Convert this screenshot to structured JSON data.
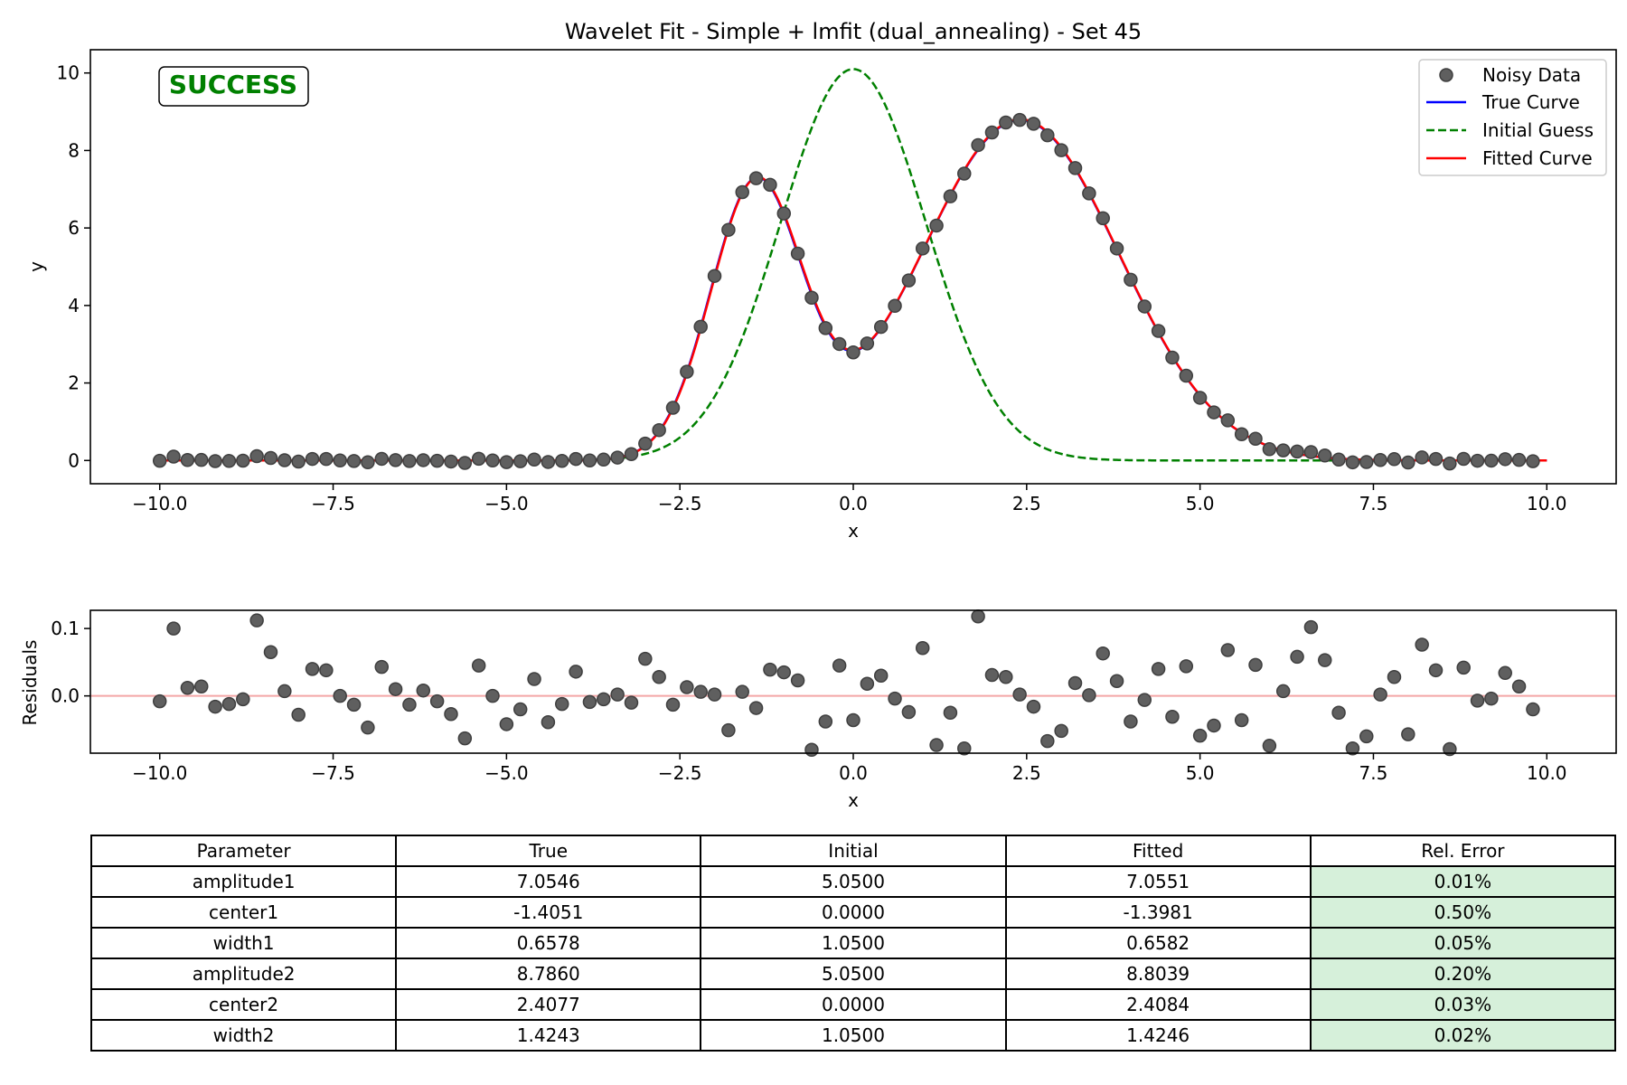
{
  "chart_data": [
    {
      "type": "line",
      "title": "Wavelet Fit - Simple + lmfit (dual_annealing) - Set 45",
      "xlabel": "x",
      "ylabel": "y",
      "xlim": [
        -11,
        11
      ],
      "ylim": [
        -0.6,
        10.6
      ],
      "xticks": [
        -10,
        -7.5,
        -5,
        -2.5,
        0,
        2.5,
        5,
        7.5,
        10
      ],
      "xtick_labels": [
        "−10.0",
        "−7.5",
        "−5.0",
        "−2.5",
        "0.0",
        "2.5",
        "5.0",
        "7.5",
        "10.0"
      ],
      "yticks": [
        0,
        2,
        4,
        6,
        8,
        10
      ],
      "ytick_labels": [
        "0",
        "2",
        "4",
        "6",
        "8",
        "10"
      ],
      "grid": false,
      "legend_placement": "top-right",
      "annotation": {
        "text": "SUCCESS",
        "color": "#008000"
      },
      "series": [
        {
          "name": "Noisy Data",
          "kind": "scatter",
          "color": "#5f5f5f"
        },
        {
          "name": "True Curve",
          "kind": "line",
          "color": "#0000ff",
          "model": {
            "amplitude1": 7.0546,
            "center1": -1.4051,
            "width1": 0.6578,
            "amplitude2": 8.786,
            "center2": 2.4077,
            "width2": 1.4243
          }
        },
        {
          "name": "Initial Guess",
          "kind": "dashed-line",
          "color": "#008000",
          "model": {
            "amplitude1": 5.05,
            "center1": 0.0,
            "width1": 1.05,
            "amplitude2": 5.05,
            "center2": 0.0,
            "width2": 1.05
          }
        },
        {
          "name": "Fitted Curve",
          "kind": "line",
          "color": "#ff0000",
          "model": {
            "amplitude1": 7.0551,
            "center1": -1.3981,
            "width1": 0.6582,
            "amplitude2": 8.8039,
            "center2": 2.4084,
            "width2": 1.4246
          }
        }
      ]
    },
    {
      "type": "scatter",
      "xlabel": "x",
      "ylabel": "Residuals",
      "xlim": [
        -11,
        11
      ],
      "ylim": [
        -0.085,
        0.127
      ],
      "xticks": [
        -10,
        -7.5,
        -5,
        -2.5,
        0,
        2.5,
        5,
        7.5,
        10
      ],
      "xtick_labels": [
        "−10.0",
        "−7.5",
        "−5.0",
        "−2.5",
        "0.0",
        "2.5",
        "5.0",
        "7.5",
        "10.0"
      ],
      "yticks": [
        0.0,
        0.1
      ],
      "ytick_labels": [
        "0.0",
        "0.1"
      ],
      "zero_line_color": "#f4a6a6",
      "x_start": -10,
      "x_step": 0.2,
      "residuals": [
        -0.008,
        0.1,
        0.012,
        0.014,
        -0.016,
        -0.012,
        -0.005,
        0.112,
        0.065,
        0.007,
        -0.028,
        0.04,
        0.038,
        0.0,
        -0.013,
        -0.047,
        0.043,
        0.01,
        -0.013,
        0.008,
        -0.008,
        -0.027,
        -0.063,
        0.045,
        0.0,
        -0.042,
        -0.02,
        0.025,
        -0.039,
        -0.012,
        0.036,
        -0.009,
        -0.005,
        0.002,
        -0.01,
        0.055,
        0.028,
        -0.013,
        0.013,
        0.006,
        0.002,
        -0.051,
        0.006,
        -0.018,
        0.039,
        0.035,
        0.023,
        -0.08,
        -0.038,
        0.045,
        -0.036,
        0.018,
        0.03,
        -0.004,
        -0.024,
        0.071,
        -0.073,
        -0.025,
        -0.078,
        0.118,
        0.031,
        0.028,
        0.002,
        -0.016,
        -0.067,
        -0.052,
        0.019,
        0.001,
        0.063,
        0.022,
        -0.038,
        -0.006,
        0.04,
        -0.031,
        0.044,
        -0.059,
        -0.044,
        0.068,
        -0.036,
        0.046,
        -0.074,
        0.007,
        0.058,
        0.102,
        0.053,
        -0.025,
        -0.078,
        -0.06,
        0.002,
        0.028,
        -0.057,
        0.076,
        0.038,
        -0.079,
        0.042,
        -0.007,
        -0.004,
        0.034,
        0.014,
        -0.02
      ]
    },
    {
      "type": "table",
      "columns": [
        "Parameter",
        "True",
        "Initial",
        "Fitted",
        "Rel. Error"
      ],
      "rows": [
        [
          "amplitude1",
          "7.0546",
          "5.0500",
          "7.0551",
          "0.01%"
        ],
        [
          "center1",
          "-1.4051",
          "0.0000",
          "-1.3981",
          "0.50%"
        ],
        [
          "width1",
          "0.6578",
          "1.0500",
          "0.6582",
          "0.05%"
        ],
        [
          "amplitude2",
          "8.7860",
          "5.0500",
          "8.8039",
          "0.20%"
        ],
        [
          "center2",
          "2.4077",
          "0.0000",
          "2.4084",
          "0.03%"
        ],
        [
          "width2",
          "1.4243",
          "1.0500",
          "1.4246",
          "0.02%"
        ]
      ],
      "rel_error_color": "#d6f0da"
    }
  ]
}
